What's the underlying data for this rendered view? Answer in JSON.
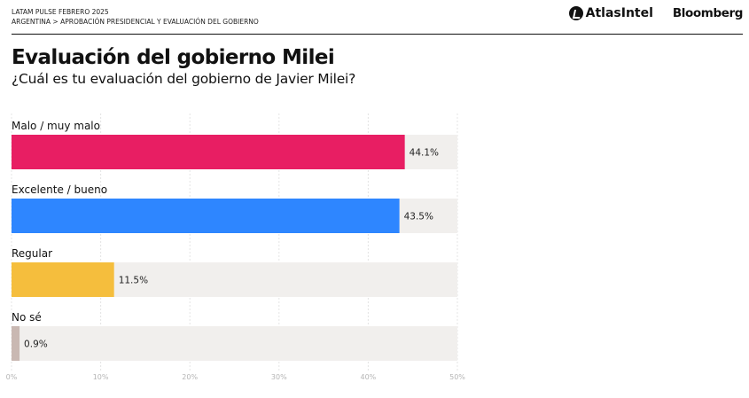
{
  "header": {
    "series_line": "LATAM PULSE  FEBRERO 2025",
    "breadcrumb": "ARGENTINA > APROBACIÓN PRESIDENCIAL Y EVALUACIÓN DEL GOBIERNO",
    "logo_atlas": "AtlasIntel",
    "logo_bloomberg": "Bloomberg"
  },
  "chart_data": {
    "type": "bar",
    "orientation": "horizontal",
    "title": "Evaluación del gobierno Milei",
    "subtitle": "¿Cuál es tu evaluación del gobierno de Javier Milei?",
    "categories": [
      "Malo / muy malo",
      "Excelente / bueno",
      "Regular",
      "No sé"
    ],
    "values": [
      44.1,
      43.5,
      11.5,
      0.9
    ],
    "value_labels": [
      "44.1%",
      "43.5%",
      "11.5%",
      "0.9%"
    ],
    "colors": [
      "#e81e63",
      "#2e86ff",
      "#f5be3d",
      "#c9b8b2"
    ],
    "track_color": "#f1efed",
    "xlim": [
      0,
      50
    ],
    "xticks": [
      "0%",
      "10%",
      "20%",
      "30%",
      "40%",
      "50%"
    ],
    "grid": true
  }
}
